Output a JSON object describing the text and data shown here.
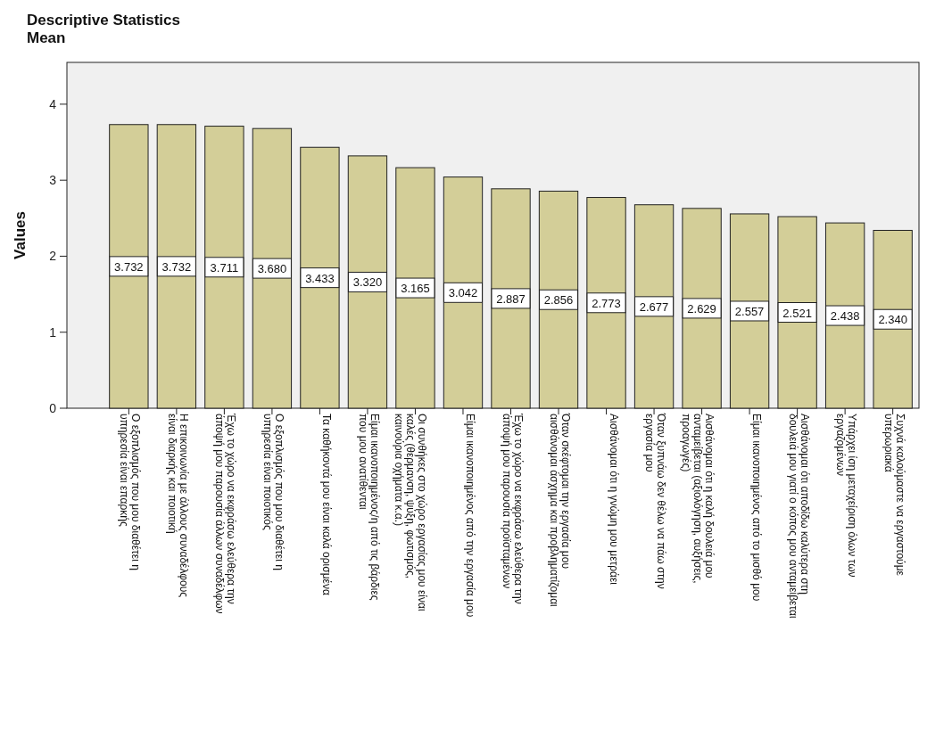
{
  "chart_data": {
    "type": "bar",
    "title": "Descriptive Statistics",
    "subtitle": "Mean",
    "ylabel": "Values",
    "categories": [
      "Ο εξοπλισμός που μου διαθέτει η\nυπηρεσία είναι επαρκής",
      "Η επικοινωνία με άλλους συναδέλφους\nείναι διαρκής και ποιοτική",
      "Έχω το χώρο να εκφράσω ελεύθερα την\nάποψή μου παρουσία άλλων συναδέλφων",
      "Ο εξοπλισμός που μου διαθέτει η\nυπηρεσία είναι ποιοτικός",
      "Τα καθήκοντά μου είναι καλά ορισμένα",
      "Είμαι ικανοποιημένος/η από τις βάρδιες\nπου μου ανατίθενται",
      "Οι συνθήκες στο χώρο εργασίας μου είναι\nκαλές (θέρμανση, ψύξη, φωτισμός,\nκαινούρια οχήματα κ.α.)",
      "Είμαι ικανοποιημένος από την εργασία μου",
      "Έχω το χώρο να εκφράσω ελεύθερα την\nάποψή μου παρουσία προϊσταμένων",
      "Όταν σκέφτομαι την εργασία μου\nαισθάνομαι άσχημα και προβληματίζομαι",
      "Αισθάνομαι ότι η γνώμη μου μετράει",
      "Όταν ξυπνάω δεν θέλω να πάω στην\nεργασία μου",
      "Αισθάνομαι ότι η καλή δουλειά μου\nανταμείβεται (αξιολόγηση, αυξήσεις,\nπροαγωγές)",
      "Είμαι ικανοποιημένος από το μισθό μου",
      "Αισθάνομαι ότι αποδίδω καλύτερα στη\nδουλειά μου γιατί ο κόπος μου ανταμείβεται",
      "Υπάρχει ίση μεταχείριση όλων των\nεργαζομένων",
      "Συχνά καλούμαστε να εργαστούμε\nυπερωριακά"
    ],
    "values": [
      3.732,
      3.732,
      3.711,
      3.68,
      3.433,
      3.32,
      3.165,
      3.042,
      2.887,
      2.856,
      2.773,
      2.677,
      2.629,
      2.557,
      2.521,
      2.438,
      2.34
    ],
    "value_labels": [
      "3.732",
      "3.732",
      "3.711",
      "3.680",
      "3.433",
      "3.320",
      "3.165",
      "3.042",
      "2.887",
      "2.856",
      "2.773",
      "2.677",
      "2.629",
      "2.557",
      "2.521",
      "2.438",
      "2.340"
    ],
    "color": "#d3ce98",
    "ylim": [
      0,
      4.55
    ],
    "yticks": [
      0,
      1,
      2,
      3,
      4
    ],
    "grid": false
  }
}
